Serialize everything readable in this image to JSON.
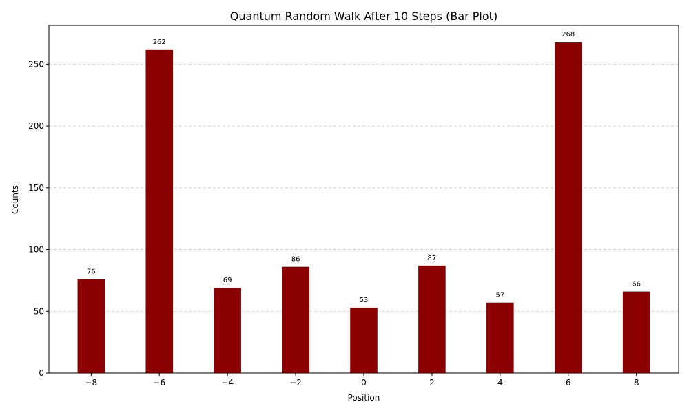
{
  "chart_data": {
    "type": "bar",
    "title": "Quantum Random Walk After 10 Steps (Bar Plot)",
    "xlabel": "Position",
    "ylabel": "Counts",
    "x": [
      -8,
      -6,
      -4,
      -2,
      0,
      2,
      4,
      6,
      8
    ],
    "x_tick_labels": [
      "−8",
      "−6",
      "−4",
      "−2",
      "0",
      "2",
      "4",
      "6",
      "8"
    ],
    "values": [
      76,
      262,
      69,
      86,
      53,
      87,
      57,
      268,
      66
    ],
    "data_labels": [
      "76",
      "262",
      "69",
      "86",
      "53",
      "87",
      "57",
      "268",
      "66"
    ],
    "y_ticks": [
      0,
      50,
      100,
      150,
      200,
      250
    ],
    "y_tick_labels": [
      "0",
      "50",
      "100",
      "150",
      "200",
      "250"
    ],
    "xlim": [
      -9.24,
      9.24
    ],
    "ylim": [
      0,
      281.4
    ],
    "bar_width": 0.8,
    "bar_color": "#8b0000",
    "grid": "y-dashed"
  }
}
